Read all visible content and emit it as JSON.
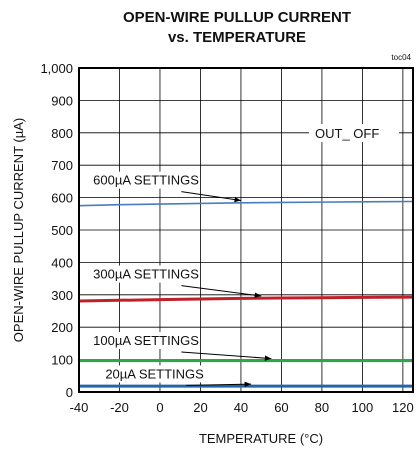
{
  "chart_data": {
    "type": "line",
    "title": [
      "OPEN-WIRE PULLUP CURRENT",
      "vs. TEMPERATURE"
    ],
    "chart_id": "toc04",
    "xlabel": "TEMPERATURE (°C)",
    "ylabel": "OPEN-WIRE PULLUP CURRENT (µA)",
    "xlim": [
      -40,
      125
    ],
    "ylim": [
      0,
      1000
    ],
    "xticks": [
      -40,
      -20,
      0,
      20,
      40,
      60,
      80,
      100,
      120
    ],
    "xtick_labels": [
      "-40",
      "-20",
      "0",
      "20",
      "40",
      "60",
      "80",
      "100",
      "120"
    ],
    "yticks": [
      0,
      100,
      200,
      300,
      400,
      500,
      600,
      700,
      800,
      900,
      1000
    ],
    "ytick_labels": [
      "0",
      "100",
      "200",
      "300",
      "400",
      "500",
      "600",
      "700",
      "800",
      "900",
      "1,000"
    ],
    "grid": true,
    "condition_label": "OUT_ OFF",
    "series": [
      {
        "name": "600µA SETTINGS",
        "color": "#4a7cc0",
        "width": 1.6,
        "x": [
          -40,
          -20,
          0,
          20,
          40,
          60,
          80,
          100,
          125
        ],
        "y": [
          575,
          578,
          580,
          582,
          584,
          585,
          586,
          587,
          588
        ],
        "label_x": -33,
        "label_y": 640,
        "arrow_x": 40,
        "arrow_y": 585
      },
      {
        "name": "300µA SETTINGS",
        "color": "#c0202a",
        "width": 3,
        "x": [
          -40,
          -20,
          0,
          20,
          40,
          60,
          80,
          100,
          125
        ],
        "y": [
          281,
          283,
          285,
          287,
          289,
          290,
          291,
          292,
          293
        ],
        "label_x": -33,
        "label_y": 350,
        "arrow_x": 50,
        "arrow_y": 290
      },
      {
        "name": "100µA SETTINGS",
        "color": "#2aa84a",
        "width": 3,
        "x": [
          -40,
          -20,
          0,
          20,
          40,
          60,
          80,
          100,
          125
        ],
        "y": [
          97,
          97,
          97,
          97,
          97,
          97,
          97,
          97,
          97
        ],
        "label_x": -33,
        "label_y": 145,
        "arrow_x": 55,
        "arrow_y": 97
      },
      {
        "name": "20µA SETTINGS",
        "color": "#2266aa",
        "width": 3,
        "x": [
          -40,
          -20,
          0,
          20,
          40,
          60,
          80,
          100,
          125
        ],
        "y": [
          18,
          18,
          18,
          18,
          18,
          18,
          18,
          18,
          18
        ],
        "label_x": -27,
        "label_y": 42,
        "arrow_x": 45,
        "arrow_y": 18
      }
    ]
  }
}
